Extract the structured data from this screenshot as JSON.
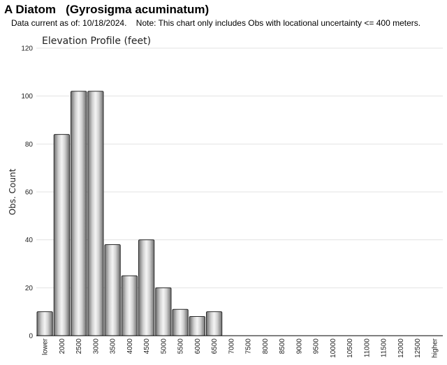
{
  "header": {
    "title": "A Diatom   (Gyrosigma acuminatum)",
    "subtitle": "Data current as of: 10/18/2024.    Note: This chart only includes Obs with locational uncertainty <= 400 meters."
  },
  "chart_data": {
    "type": "bar",
    "title": "Elevation Profile (feet)",
    "xlabel": "",
    "ylabel": "Obs. Count",
    "ylim": [
      0,
      120
    ],
    "yticks": [
      0,
      20,
      40,
      60,
      80,
      100,
      120
    ],
    "grid": true,
    "categories": [
      "lower",
      "2000",
      "2500",
      "3000",
      "3500",
      "4000",
      "4500",
      "5000",
      "5500",
      "6000",
      "6500",
      "7000",
      "7500",
      "8000",
      "8500",
      "9000",
      "9500",
      "10000",
      "10500",
      "11000",
      "11500",
      "12000",
      "12500",
      "higher"
    ],
    "values": [
      10,
      84,
      102,
      102,
      38,
      25,
      40,
      20,
      11,
      8,
      10,
      0,
      0,
      0,
      0,
      0,
      0,
      0,
      0,
      0,
      0,
      0,
      0,
      0
    ]
  }
}
